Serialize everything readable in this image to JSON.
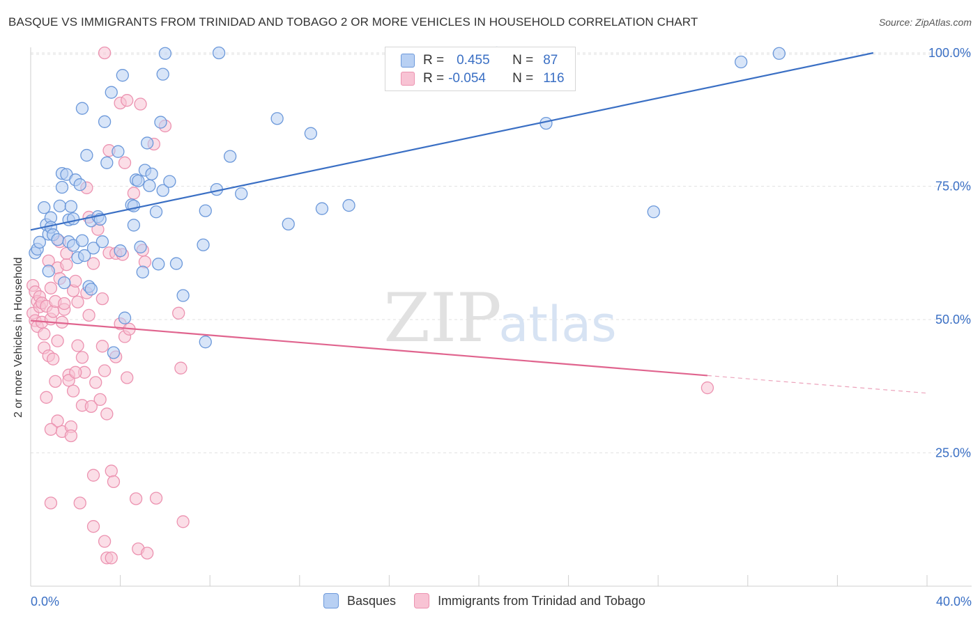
{
  "title": "BASQUE VS IMMIGRANTS FROM TRINIDAD AND TOBAGO 2 OR MORE VEHICLES IN HOUSEHOLD CORRELATION CHART",
  "source": "Source: ZipAtlas.com",
  "watermark": {
    "zip": "ZIP",
    "atlas": "atlas"
  },
  "colors": {
    "blue": "#3a6fc4",
    "blue_fill": "#b8d0f3",
    "blue_stroke": "#6b98da",
    "pink": "#e0648e",
    "pink_fill": "#f8c3d4",
    "pink_stroke": "#ec92b0",
    "grid": "#e2e2e2",
    "axis_text": "#3a6fc4"
  },
  "legend": {
    "r_label": "R =",
    "n_label": "N =",
    "rows": [
      {
        "series": "Basques",
        "r": "0.455",
        "n": "87",
        "color": "blue"
      },
      {
        "series": "Immigrants from Trinidad and Tobago",
        "r": "-0.054",
        "n": "116",
        "color": "pink"
      }
    ]
  },
  "chart_data": {
    "type": "scatter",
    "title": "BASQUE VS IMMIGRANTS FROM TRINIDAD AND TOBAGO 2 OR MORE VEHICLES IN HOUSEHOLD CORRELATION CHART",
    "xlabel": "",
    "ylabel": "2 or more Vehicles in Household",
    "xlim": [
      0,
      40
    ],
    "ylim": [
      0,
      102
    ],
    "x_tick_labels": [
      {
        "value": 0,
        "label": "0.0%"
      },
      {
        "value": 40,
        "label": "40.0%"
      }
    ],
    "y_tick_labels": [
      {
        "value": 25,
        "label": "25.0%"
      },
      {
        "value": 50,
        "label": "50.0%"
      },
      {
        "value": 75,
        "label": "75.0%"
      },
      {
        "value": 100,
        "label": "100.0%"
      }
    ],
    "grid": true,
    "legend_position": "top-center",
    "series": [
      {
        "name": "Basques",
        "color": "blue",
        "trend": {
          "x": [
            0,
            37.6
          ],
          "y": [
            66.8,
            100
          ],
          "dashed_to": null
        },
        "points": [
          [
            0.2,
            62.5
          ],
          [
            0.3,
            63.2
          ],
          [
            0.4,
            64.5
          ],
          [
            0.6,
            71.0
          ],
          [
            0.7,
            67.8
          ],
          [
            0.8,
            66.0
          ],
          [
            0.8,
            59.1
          ],
          [
            0.9,
            69.1
          ],
          [
            0.9,
            67.3
          ],
          [
            1.0,
            65.9
          ],
          [
            1.2,
            65.0
          ],
          [
            1.3,
            71.3
          ],
          [
            1.4,
            74.8
          ],
          [
            1.4,
            77.4
          ],
          [
            1.5,
            56.9
          ],
          [
            1.6,
            77.2
          ],
          [
            1.7,
            64.6
          ],
          [
            1.7,
            68.7
          ],
          [
            1.8,
            71.2
          ],
          [
            1.9,
            63.9
          ],
          [
            1.9,
            68.9
          ],
          [
            2.0,
            76.2
          ],
          [
            2.1,
            61.6
          ],
          [
            2.2,
            75.3
          ],
          [
            2.3,
            64.8
          ],
          [
            2.3,
            89.6
          ],
          [
            2.4,
            62.0
          ],
          [
            2.5,
            80.8
          ],
          [
            2.6,
            56.2
          ],
          [
            2.7,
            55.7
          ],
          [
            2.7,
            68.5
          ],
          [
            2.8,
            63.4
          ],
          [
            3.0,
            69.3
          ],
          [
            3.1,
            68.8
          ],
          [
            3.2,
            64.6
          ],
          [
            3.3,
            87.1
          ],
          [
            3.4,
            79.4
          ],
          [
            3.6,
            92.6
          ],
          [
            3.7,
            43.8
          ],
          [
            3.9,
            81.5
          ],
          [
            4.0,
            62.9
          ],
          [
            4.1,
            95.8
          ],
          [
            4.2,
            50.3
          ],
          [
            4.5,
            71.5
          ],
          [
            4.6,
            71.3
          ],
          [
            4.6,
            67.7
          ],
          [
            4.7,
            76.2
          ],
          [
            4.8,
            76.0
          ],
          [
            4.9,
            63.6
          ],
          [
            5.0,
            58.9
          ],
          [
            5.1,
            78.0
          ],
          [
            5.2,
            83.1
          ],
          [
            5.3,
            75.1
          ],
          [
            5.4,
            77.3
          ],
          [
            5.6,
            70.2
          ],
          [
            5.7,
            60.4
          ],
          [
            5.8,
            87.0
          ],
          [
            5.9,
            74.2
          ],
          [
            5.9,
            96.0
          ],
          [
            6.0,
            99.9
          ],
          [
            6.2,
            75.9
          ],
          [
            6.5,
            60.5
          ],
          [
            6.8,
            54.5
          ],
          [
            7.7,
            64.0
          ],
          [
            7.8,
            45.8
          ],
          [
            7.8,
            70.4
          ],
          [
            8.3,
            74.4
          ],
          [
            8.4,
            100.0
          ],
          [
            8.9,
            80.6
          ],
          [
            9.4,
            73.6
          ],
          [
            11.0,
            87.7
          ],
          [
            11.5,
            67.9
          ],
          [
            12.5,
            84.9
          ],
          [
            13.0,
            70.8
          ],
          [
            14.2,
            71.4
          ],
          [
            20.8,
            100.0
          ],
          [
            23.0,
            86.8
          ],
          [
            27.8,
            70.2
          ],
          [
            31.7,
            98.3
          ],
          [
            33.4,
            99.9
          ]
        ]
      },
      {
        "name": "Immigrants from Trinidad and Tobago",
        "color": "pink",
        "trend": {
          "x": [
            0,
            30.2
          ],
          "y": [
            49.8,
            39.5
          ],
          "dashed_to": {
            "x": 40,
            "y": 36.2
          }
        },
        "points": [
          [
            0.1,
            51.2
          ],
          [
            0.1,
            56.4
          ],
          [
            0.2,
            49.8
          ],
          [
            0.2,
            55.2
          ],
          [
            0.3,
            53.4
          ],
          [
            0.3,
            48.7
          ],
          [
            0.4,
            54.3
          ],
          [
            0.4,
            52.4
          ],
          [
            0.5,
            49.5
          ],
          [
            0.5,
            53.1
          ],
          [
            0.6,
            47.3
          ],
          [
            0.6,
            44.7
          ],
          [
            0.7,
            35.4
          ],
          [
            0.7,
            52.5
          ],
          [
            0.8,
            43.2
          ],
          [
            0.8,
            61.0
          ],
          [
            0.9,
            50.1
          ],
          [
            0.9,
            55.9
          ],
          [
            0.9,
            15.6
          ],
          [
            1.0,
            51.5
          ],
          [
            1.0,
            42.6
          ],
          [
            1.1,
            38.4
          ],
          [
            1.1,
            53.4
          ],
          [
            1.2,
            59.7
          ],
          [
            1.2,
            46.0
          ],
          [
            1.3,
            64.6
          ],
          [
            1.3,
            57.7
          ],
          [
            1.4,
            49.5
          ],
          [
            1.4,
            29.0
          ],
          [
            1.5,
            51.9
          ],
          [
            1.5,
            53.0
          ],
          [
            1.6,
            60.3
          ],
          [
            1.7,
            39.6
          ],
          [
            1.7,
            38.6
          ],
          [
            1.8,
            29.9
          ],
          [
            1.8,
            28.2
          ],
          [
            1.9,
            36.6
          ],
          [
            1.9,
            55.4
          ],
          [
            2.0,
            57.2
          ],
          [
            2.1,
            45.1
          ],
          [
            2.1,
            53.3
          ],
          [
            2.2,
            15.6
          ],
          [
            2.3,
            42.9
          ],
          [
            2.3,
            33.9
          ],
          [
            2.4,
            40.1
          ],
          [
            2.5,
            55.0
          ],
          [
            2.5,
            74.7
          ],
          [
            2.6,
            69.2
          ],
          [
            2.7,
            33.7
          ],
          [
            2.8,
            20.8
          ],
          [
            2.8,
            60.5
          ],
          [
            2.8,
            11.2
          ],
          [
            2.9,
            38.2
          ],
          [
            3.0,
            66.9
          ],
          [
            3.1,
            35.0
          ],
          [
            3.2,
            45.0
          ],
          [
            3.2,
            53.9
          ],
          [
            3.3,
            40.4
          ],
          [
            3.3,
            8.4
          ],
          [
            3.4,
            5.3
          ],
          [
            3.4,
            32.3
          ],
          [
            3.5,
            81.7
          ],
          [
            3.5,
            62.5
          ],
          [
            3.6,
            21.6
          ],
          [
            3.6,
            5.3
          ],
          [
            3.7,
            19.6
          ],
          [
            3.8,
            43.0
          ],
          [
            3.8,
            62.4
          ],
          [
            4.0,
            49.2
          ],
          [
            4.0,
            90.6
          ],
          [
            4.1,
            62.2
          ],
          [
            4.2,
            79.4
          ],
          [
            4.2,
            46.8
          ],
          [
            4.3,
            39.1
          ],
          [
            4.3,
            91.1
          ],
          [
            4.4,
            48.2
          ],
          [
            4.7,
            16.4
          ],
          [
            4.8,
            7.0
          ],
          [
            4.9,
            90.4
          ],
          [
            5.0,
            63.0
          ],
          [
            5.1,
            60.8
          ],
          [
            5.2,
            6.2
          ],
          [
            5.5,
            82.9
          ],
          [
            5.6,
            16.5
          ],
          [
            6.0,
            86.3
          ],
          [
            6.6,
            51.2
          ],
          [
            6.7,
            40.9
          ],
          [
            6.8,
            12.1
          ],
          [
            4.6,
            73.7
          ],
          [
            1.6,
            62.4
          ],
          [
            2.0,
            40.1
          ],
          [
            1.2,
            31.0
          ],
          [
            0.9,
            29.4
          ],
          [
            2.6,
            50.8
          ],
          [
            3.3,
            100.0
          ],
          [
            30.2,
            37.2
          ]
        ]
      }
    ]
  },
  "bottom_legend": [
    "Basques",
    "Immigrants from Trinidad and Tobago"
  ]
}
